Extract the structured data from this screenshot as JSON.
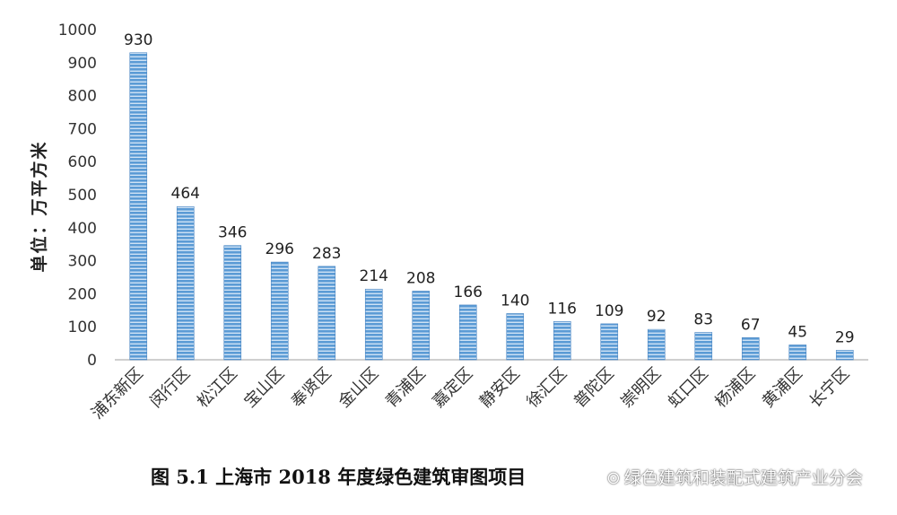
{
  "chart_data": {
    "type": "bar",
    "title": "",
    "xlabel": "",
    "ylabel": "单位：万平方米",
    "ylim": [
      0,
      1000
    ],
    "yticks": [
      0,
      100,
      200,
      300,
      400,
      500,
      600,
      700,
      800,
      900,
      1000
    ],
    "grid": false,
    "bar_color": "#5b9bd5",
    "categories": [
      "浦东新区",
      "闵行区",
      "松江区",
      "宝山区",
      "奉贤区",
      "金山区",
      "青浦区",
      "嘉定区",
      "静安区",
      "徐汇区",
      "普陀区",
      "崇明区",
      "虹口区",
      "杨浦区",
      "黄浦区",
      "长宁区"
    ],
    "values": [
      930,
      464,
      346,
      296,
      283,
      214,
      208,
      166,
      140,
      116,
      109,
      92,
      83,
      67,
      45,
      29
    ]
  },
  "caption": "图 5.1 上海市 2018 年度绿色建筑审图项目",
  "watermark": "绿色建筑和装配式建筑产业分会"
}
